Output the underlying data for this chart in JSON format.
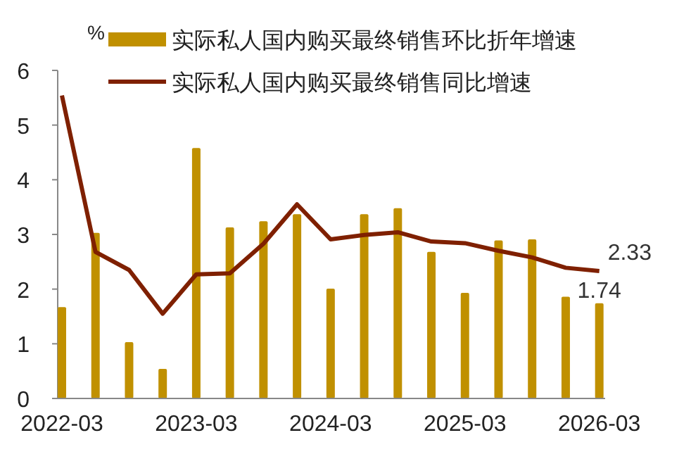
{
  "chart_data": {
    "type": "bar",
    "ylabel": "%",
    "categories": [
      "2022-03",
      null,
      null,
      null,
      "2023-03",
      null,
      null,
      null,
      "2024-03",
      null,
      null,
      null,
      "2025-03",
      null,
      null,
      null,
      "2026-03"
    ],
    "series": [
      {
        "name": "实际私人国内购买最终销售环比折年增速",
        "color": "#c09000",
        "values": [
          1.67,
          3.03,
          1.03,
          0.54,
          4.58,
          3.13,
          3.24,
          3.37,
          2.01,
          3.37,
          3.48,
          2.68,
          1.93,
          2.89,
          2.91,
          1.86,
          1.74
        ],
        "value_labels": [
          null,
          null,
          null,
          null,
          null,
          null,
          null,
          null,
          null,
          null,
          null,
          null,
          null,
          null,
          null,
          null,
          "1.74"
        ]
      },
      {
        "name": "实际私人国内购买最终销售同比增速",
        "type": "line",
        "color": "#7f2000",
        "values": [
          5.54,
          2.68,
          2.35,
          1.55,
          2.27,
          2.29,
          2.83,
          3.55,
          2.91,
          2.99,
          3.04,
          2.87,
          2.84,
          2.7,
          2.58,
          2.39,
          2.33
        ],
        "value_labels": [
          null,
          null,
          null,
          null,
          null,
          null,
          null,
          null,
          null,
          null,
          null,
          null,
          null,
          null,
          null,
          null,
          "2.33"
        ]
      }
    ],
    "ylim": [
      0,
      6
    ],
    "yticks": [
      0,
      1,
      2,
      3,
      4,
      5,
      6
    ],
    "legend": "top",
    "grid": false,
    "marker": "none",
    "line_style": "solid"
  }
}
